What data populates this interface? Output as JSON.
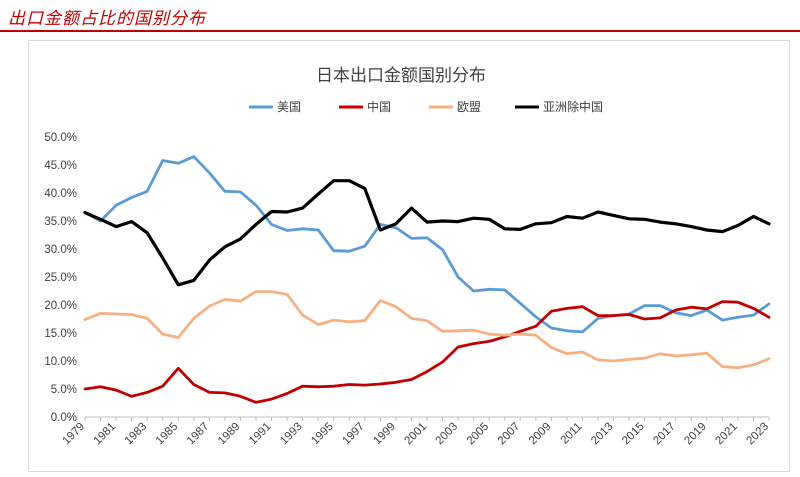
{
  "header": {
    "title": "出口金额占比的国别分布"
  },
  "chart_data": {
    "type": "line",
    "title": "日本出口金额国别分布",
    "xlabel": "",
    "ylabel": "",
    "ylim": [
      0,
      50
    ],
    "y_ticks": [
      "0.0%",
      "5.0%",
      "10.0%",
      "15.0%",
      "20.0%",
      "25.0%",
      "30.0%",
      "35.0%",
      "40.0%",
      "45.0%",
      "50.0%"
    ],
    "x_ticks": [
      "1979",
      "1981",
      "1983",
      "1985",
      "1987",
      "1989",
      "1991",
      "1993",
      "1995",
      "1997",
      "1999",
      "2001",
      "2003",
      "2005",
      "2007",
      "2009",
      "2011",
      "2013",
      "2015",
      "2017",
      "2019",
      "2021",
      "2023"
    ],
    "x": [
      1979,
      1980,
      1981,
      1982,
      1983,
      1984,
      1985,
      1986,
      1987,
      1988,
      1989,
      1990,
      1991,
      1992,
      1993,
      1994,
      1995,
      1996,
      1997,
      1998,
      1999,
      2000,
      2001,
      2002,
      2003,
      2004,
      2005,
      2006,
      2007,
      2008,
      2009,
      2010,
      2011,
      2012,
      2013,
      2014,
      2015,
      2016,
      2017,
      2018,
      2019,
      2020,
      2021,
      2022,
      2023
    ],
    "legend_position": "top",
    "grid": false,
    "series": [
      {
        "name": "美国",
        "color": "#5b9bd5",
        "values": [
          36.5,
          35.0,
          37.8,
          39.2,
          40.3,
          45.8,
          45.3,
          46.5,
          43.6,
          40.3,
          40.2,
          37.8,
          34.4,
          33.3,
          33.6,
          33.4,
          29.7,
          29.6,
          30.5,
          34.4,
          33.8,
          31.9,
          32.0,
          29.9,
          25.0,
          22.5,
          22.8,
          22.7,
          20.3,
          17.9,
          15.9,
          15.4,
          15.2,
          17.6,
          18.1,
          18.4,
          19.9,
          19.9,
          18.6,
          18.1,
          19.1,
          17.3,
          17.8,
          18.2,
          20.2
        ]
      },
      {
        "name": "中国",
        "color": "#c00000",
        "values": [
          5.0,
          5.4,
          4.8,
          3.7,
          4.4,
          5.5,
          8.7,
          5.8,
          4.4,
          4.3,
          3.7,
          2.6,
          3.2,
          4.2,
          5.5,
          5.4,
          5.5,
          5.8,
          5.7,
          5.9,
          6.2,
          6.7,
          8.1,
          9.8,
          12.5,
          13.1,
          13.5,
          14.3,
          15.3,
          16.2,
          18.9,
          19.4,
          19.7,
          18.1,
          18.1,
          18.3,
          17.5,
          17.7,
          19.1,
          19.6,
          19.3,
          20.6,
          20.5,
          19.4,
          17.8
        ]
      },
      {
        "name": "欧盟",
        "color": "#f4b183",
        "values": [
          17.4,
          18.5,
          18.4,
          18.3,
          17.6,
          14.8,
          14.2,
          17.6,
          19.8,
          21.0,
          20.7,
          22.4,
          22.4,
          21.9,
          18.2,
          16.5,
          17.3,
          17.0,
          17.2,
          20.8,
          19.7,
          17.6,
          17.2,
          15.3,
          15.4,
          15.5,
          14.8,
          14.6,
          14.8,
          14.6,
          12.4,
          11.3,
          11.6,
          10.2,
          10.0,
          10.3,
          10.5,
          11.3,
          10.9,
          11.1,
          11.4,
          9.0,
          8.8,
          9.3,
          10.4
        ]
      },
      {
        "name": "亚洲除中国",
        "color": "#000000",
        "values": [
          36.5,
          35.3,
          34.0,
          34.9,
          32.9,
          28.4,
          23.6,
          24.4,
          28.0,
          30.4,
          31.8,
          34.4,
          36.7,
          36.6,
          37.3,
          39.8,
          42.2,
          42.2,
          40.8,
          33.4,
          34.5,
          37.3,
          34.8,
          35.0,
          34.9,
          35.5,
          35.3,
          33.6,
          33.5,
          34.5,
          34.7,
          35.8,
          35.5,
          36.6,
          36.0,
          35.4,
          35.3,
          34.8,
          34.5,
          34.0,
          33.4,
          33.1,
          34.2,
          35.8,
          34.5
        ]
      }
    ]
  }
}
